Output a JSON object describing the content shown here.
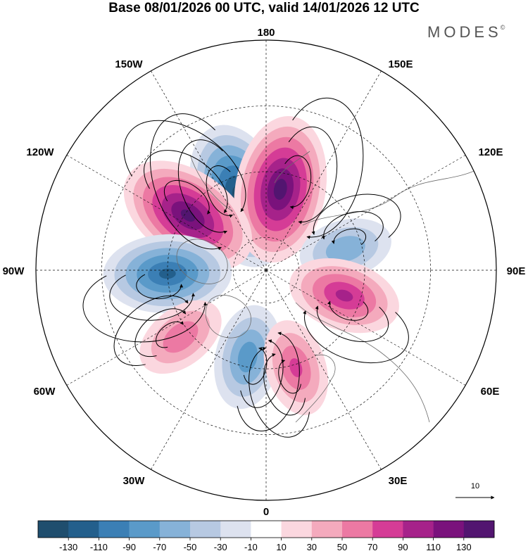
{
  "title": "Base 08/01/2026 00 UTC, valid 14/01/2026 12 UTC",
  "brand": {
    "name": "MODES",
    "mark": "©"
  },
  "longitude_labels": {
    "lon_180": "180",
    "lon_150e": "150E",
    "lon_120e": "120E",
    "lon_90e": "90E",
    "lon_60e": "60E",
    "lon_30e": "30E",
    "lon_0": "0",
    "lon_30w": "30W",
    "lon_60w": "60W",
    "lon_90w": "90W",
    "lon_120w": "120W",
    "lon_150w": "150W"
  },
  "reference_vector": {
    "label": "10",
    "icon": "arrow-right-icon"
  },
  "colorbar": {
    "colors": [
      "#1f4e6e",
      "#235f8c",
      "#3b7fb5",
      "#5a9ac9",
      "#86b2d8",
      "#b7c9e2",
      "#dde2ef",
      "#ffffff",
      "#fbd7df",
      "#f4aabd",
      "#ec79a3",
      "#d53c96",
      "#a6228a",
      "#7a127c",
      "#521570"
    ],
    "tick_labels": [
      "-130",
      "-110",
      "-90",
      "-70",
      "-50",
      "-30",
      "-10",
      "10",
      "30",
      "50",
      "70",
      "90",
      "110",
      "130"
    ]
  },
  "anomaly_centers": [
    {
      "name": "neg-150w",
      "lon": -160,
      "colat": 24,
      "value": -140
    },
    {
      "name": "pos-170e",
      "lon": 170,
      "colat": 25,
      "value": 140
    },
    {
      "name": "pos-125w",
      "lon": -125,
      "colat": 29,
      "value": 135
    },
    {
      "name": "neg-105e",
      "lon": 105,
      "colat": 25,
      "value": -70
    },
    {
      "name": "neg-90w",
      "lon": -88,
      "colat": 30,
      "value": -115
    },
    {
      "name": "pos-70e",
      "lon": 72,
      "colat": 25,
      "value": 95
    },
    {
      "name": "pos-55w",
      "lon": -52,
      "colat": 33,
      "value": 70
    },
    {
      "name": "neg-15w",
      "lon": -12,
      "colat": 27,
      "value": -85
    },
    {
      "name": "pos-15e",
      "lon": 17,
      "colat": 31,
      "value": 75
    }
  ]
}
